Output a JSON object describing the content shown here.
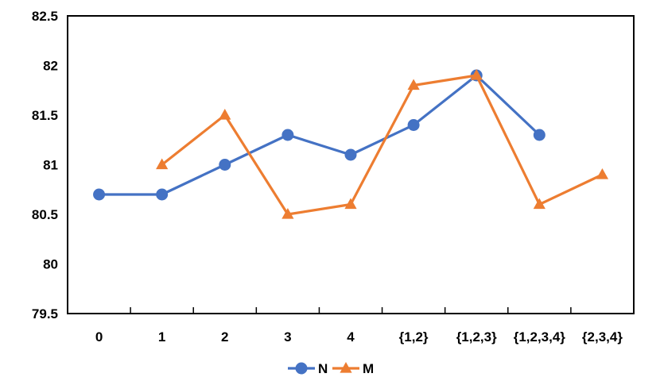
{
  "chart_data": {
    "type": "line",
    "title": "",
    "xlabel": "",
    "ylabel": "",
    "categories": [
      "0",
      "1",
      "2",
      "3",
      "4",
      "{1,2}",
      "{1,2,3}",
      "{1,2,3,4}",
      "{2,3,4}"
    ],
    "ylim": [
      79.5,
      82.5
    ],
    "yticks": [
      79.5,
      80,
      80.5,
      81,
      81.5,
      82,
      82.5
    ],
    "ytick_labels": [
      "79.5",
      "80",
      "80.5",
      "81",
      "81.5",
      "82",
      "82.5"
    ],
    "grid": false,
    "legend_position": "bottom-center",
    "series": [
      {
        "name": "N",
        "marker": "circle",
        "color": "#4472C4",
        "values": [
          80.7,
          80.7,
          81.0,
          81.3,
          81.1,
          81.4,
          81.9,
          81.3,
          null
        ]
      },
      {
        "name": "M",
        "marker": "triangle",
        "color": "#ED7D31",
        "values": [
          null,
          81.0,
          81.5,
          80.5,
          80.6,
          81.8,
          81.9,
          80.6,
          80.9
        ]
      }
    ]
  }
}
